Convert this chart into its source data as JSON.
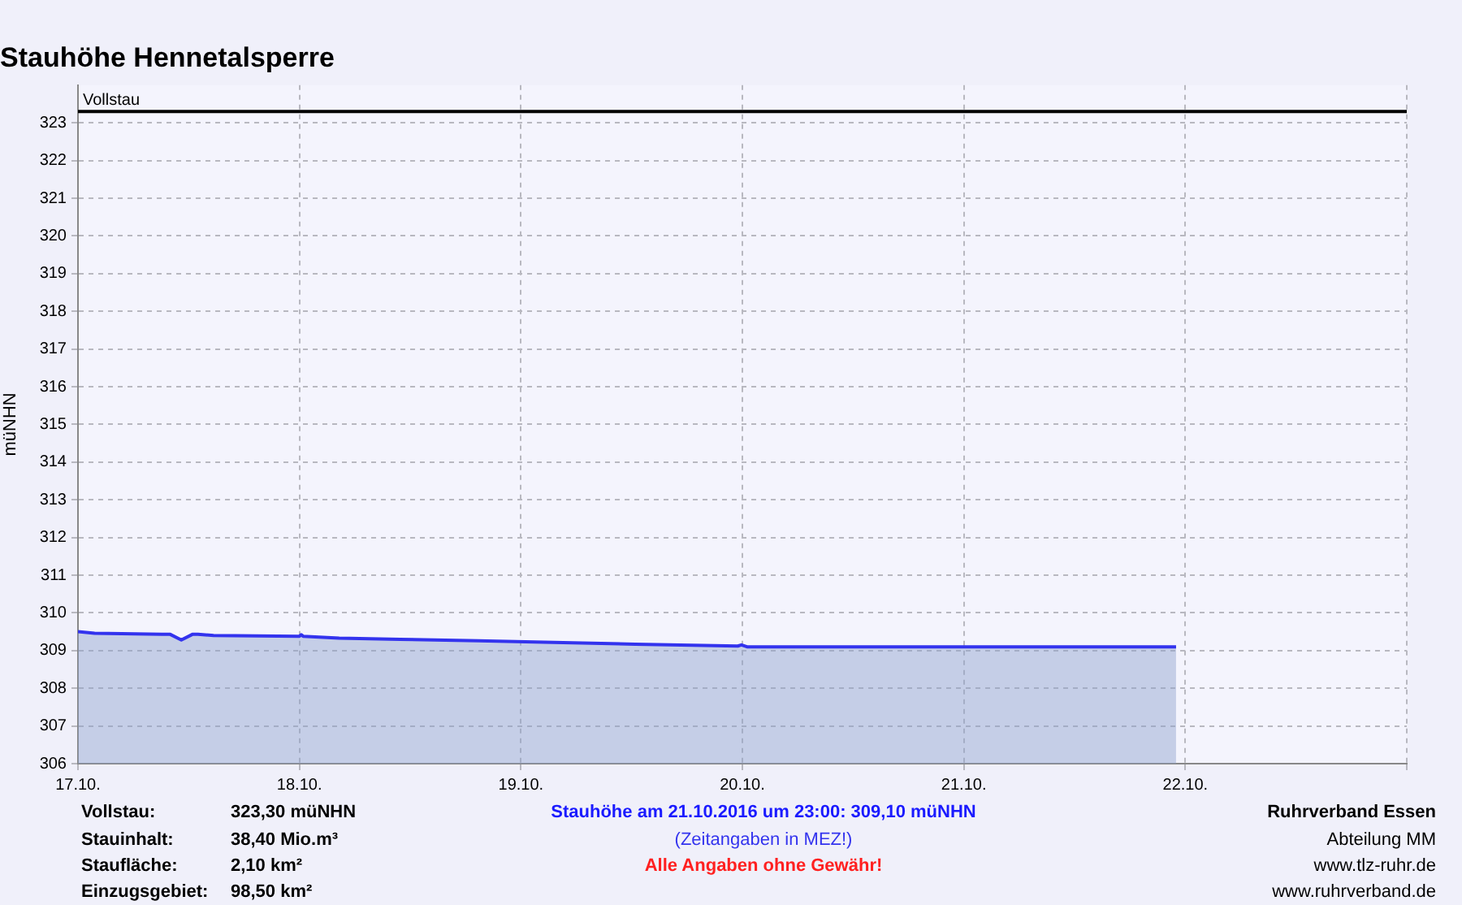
{
  "chart_data": {
    "type": "area",
    "title": "Stauhöhe Hennetalsperre",
    "ylabel": "müNHN",
    "x": [
      "2016-10-17T00:00",
      "2016-10-17T01:48",
      "2016-10-17T09:06",
      "2016-10-17T10:00",
      "2016-10-17T11:12",
      "2016-10-17T12:24",
      "2016-10-17T13:00",
      "2016-10-17T14:42",
      "2016-10-18T00:00",
      "2016-10-18T00:12",
      "2016-10-18T00:24",
      "2016-10-18T04:18",
      "2016-10-18T10:54",
      "2016-10-18T19:24",
      "2016-10-19T02:30",
      "2016-10-19T12:24",
      "2016-10-19T23:30",
      "2016-10-19T23:54",
      "2016-10-20T00:30",
      "2016-10-21T23:00"
    ],
    "series": [
      {
        "color": "#3333ee",
        "values": [
          309.5,
          309.46,
          309.43,
          309.43,
          309.28,
          309.43,
          309.43,
          309.4,
          309.38,
          309.42,
          309.38,
          309.33,
          309.3,
          309.26,
          309.22,
          309.17,
          309.12,
          309.15,
          309.1,
          309.1
        ]
      }
    ],
    "xlim": [
      "2016-10-17",
      "2016-10-23"
    ],
    "xticks": [
      {
        "value": "2016-10-17",
        "label": "17.10."
      },
      {
        "value": "2016-10-18",
        "label": "18.10."
      },
      {
        "value": "2016-10-19",
        "label": "19.10."
      },
      {
        "value": "2016-10-20",
        "label": "20.10."
      },
      {
        "value": "2016-10-21",
        "label": "21.10."
      },
      {
        "value": "2016-10-22",
        "label": "22.10."
      },
      {
        "value": "2016-10-23",
        "label": null
      }
    ],
    "ylim": [
      306,
      324
    ],
    "yticks": [
      306,
      307,
      308,
      309,
      310,
      311,
      312,
      313,
      314,
      315,
      316,
      317,
      318,
      319,
      320,
      321,
      322,
      323
    ],
    "grid": true,
    "legend": false,
    "ref_lines": [
      {
        "axis": "y",
        "value": 323.3,
        "label": "Vollstau",
        "color": "#000000"
      }
    ],
    "annotations": [
      "Vollstau:",
      "323,30 müNHN",
      "Stauinhalt:",
      "38,40 Mio.m³",
      "Staufläche:",
      "2,10 km²",
      "Einzugsgebiet:",
      "98,50 km²",
      "Stauhöhe am 21.10.2016 um 23:00: 309,10  müNHN",
      "(Zeitangaben in MEZ!)",
      "Alle Angaben ohne Gewähr!",
      "Ruhrverband Essen",
      "Abteilung MM",
      "www.tlz-ruhr.de",
      "www.ruhrverband.de"
    ]
  }
}
